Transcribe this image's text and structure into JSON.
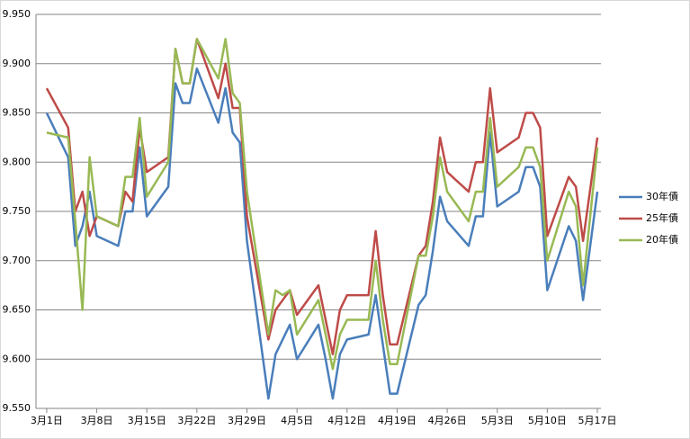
{
  "chart_data": {
    "type": "line",
    "x": [
      0,
      3,
      4,
      5,
      6,
      7,
      10,
      11,
      12,
      13,
      14,
      17,
      18,
      19,
      20,
      21,
      24,
      25,
      26,
      27,
      28,
      31,
      32,
      33,
      34,
      35,
      38,
      39,
      40,
      41,
      42,
      45,
      46,
      47,
      48,
      49,
      52,
      53,
      54,
      55,
      56,
      59,
      60,
      61,
      62,
      63,
      66,
      67,
      68,
      69,
      70,
      73,
      74,
      75,
      77
    ],
    "xlim": [
      -1.5,
      77.5
    ],
    "xticks": [
      {
        "value": 0,
        "label": "3月1日"
      },
      {
        "value": 7,
        "label": "3月8日"
      },
      {
        "value": 14,
        "label": "3月15日"
      },
      {
        "value": 21,
        "label": "3月22日"
      },
      {
        "value": 28,
        "label": "3月29日"
      },
      {
        "value": 35,
        "label": "4月5日"
      },
      {
        "value": 42,
        "label": "4月12日"
      },
      {
        "value": 49,
        "label": "4月19日"
      },
      {
        "value": 56,
        "label": "4月26日"
      },
      {
        "value": 63,
        "label": "5月3日"
      },
      {
        "value": 70,
        "label": "5月10日"
      },
      {
        "value": 77,
        "label": "5月17日"
      }
    ],
    "ylim": [
      9.55,
      9.95
    ],
    "yticks": [
      {
        "value": 9.55,
        "label": "9.550"
      },
      {
        "value": 9.6,
        "label": "9.600"
      },
      {
        "value": 9.65,
        "label": "9.650"
      },
      {
        "value": 9.7,
        "label": "9.700"
      },
      {
        "value": 9.75,
        "label": "9.750"
      },
      {
        "value": 9.8,
        "label": "9.800"
      },
      {
        "value": 9.85,
        "label": "9.850"
      },
      {
        "value": 9.9,
        "label": "9.900"
      },
      {
        "value": 9.95,
        "label": "9.950"
      }
    ],
    "grid": true,
    "legend": "right",
    "series": [
      {
        "name": "30年債",
        "color": "#4a7ebb",
        "values": [
          9.85,
          9.805,
          9.715,
          9.735,
          9.77,
          9.725,
          9.715,
          9.75,
          9.75,
          9.815,
          9.745,
          9.775,
          9.88,
          9.86,
          9.86,
          9.895,
          9.84,
          9.875,
          9.83,
          9.82,
          9.72,
          9.56,
          9.605,
          9.62,
          9.635,
          9.6,
          9.635,
          9.6,
          9.56,
          9.605,
          9.62,
          9.625,
          9.665,
          9.615,
          9.565,
          9.565,
          9.655,
          9.665,
          9.71,
          9.765,
          9.74,
          9.715,
          9.745,
          9.745,
          9.83,
          9.755,
          9.77,
          9.795,
          9.795,
          9.775,
          9.67,
          9.735,
          9.72,
          9.66,
          9.77
        ]
      },
      {
        "name": "25年債",
        "color": "#be4b48",
        "values": [
          9.875,
          9.835,
          9.75,
          9.77,
          9.725,
          9.745,
          9.735,
          9.77,
          9.76,
          9.835,
          9.79,
          9.805,
          9.915,
          9.88,
          9.88,
          9.925,
          9.865,
          9.9,
          9.855,
          9.855,
          9.745,
          9.62,
          9.65,
          9.66,
          9.67,
          9.645,
          9.675,
          9.64,
          9.605,
          9.65,
          9.665,
          9.665,
          9.73,
          9.665,
          9.615,
          9.615,
          9.705,
          9.715,
          9.76,
          9.825,
          9.79,
          9.77,
          9.8,
          9.8,
          9.875,
          9.81,
          9.825,
          9.85,
          9.85,
          9.835,
          9.725,
          9.785,
          9.775,
          9.72,
          9.825
        ]
      },
      {
        "name": "20年債",
        "color": "#98b954",
        "values": [
          9.83,
          9.825,
          9.74,
          9.65,
          9.805,
          9.745,
          9.735,
          9.785,
          9.785,
          9.845,
          9.765,
          9.8,
          9.915,
          9.88,
          9.88,
          9.925,
          9.885,
          9.925,
          9.87,
          9.86,
          9.77,
          9.625,
          9.67,
          9.665,
          9.67,
          9.625,
          9.66,
          9.625,
          9.59,
          9.625,
          9.64,
          9.64,
          9.7,
          9.64,
          9.595,
          9.595,
          9.705,
          9.705,
          9.745,
          9.805,
          9.77,
          9.74,
          9.77,
          9.77,
          9.845,
          9.775,
          9.795,
          9.815,
          9.815,
          9.795,
          9.7,
          9.77,
          9.755,
          9.675,
          9.815
        ]
      }
    ]
  }
}
